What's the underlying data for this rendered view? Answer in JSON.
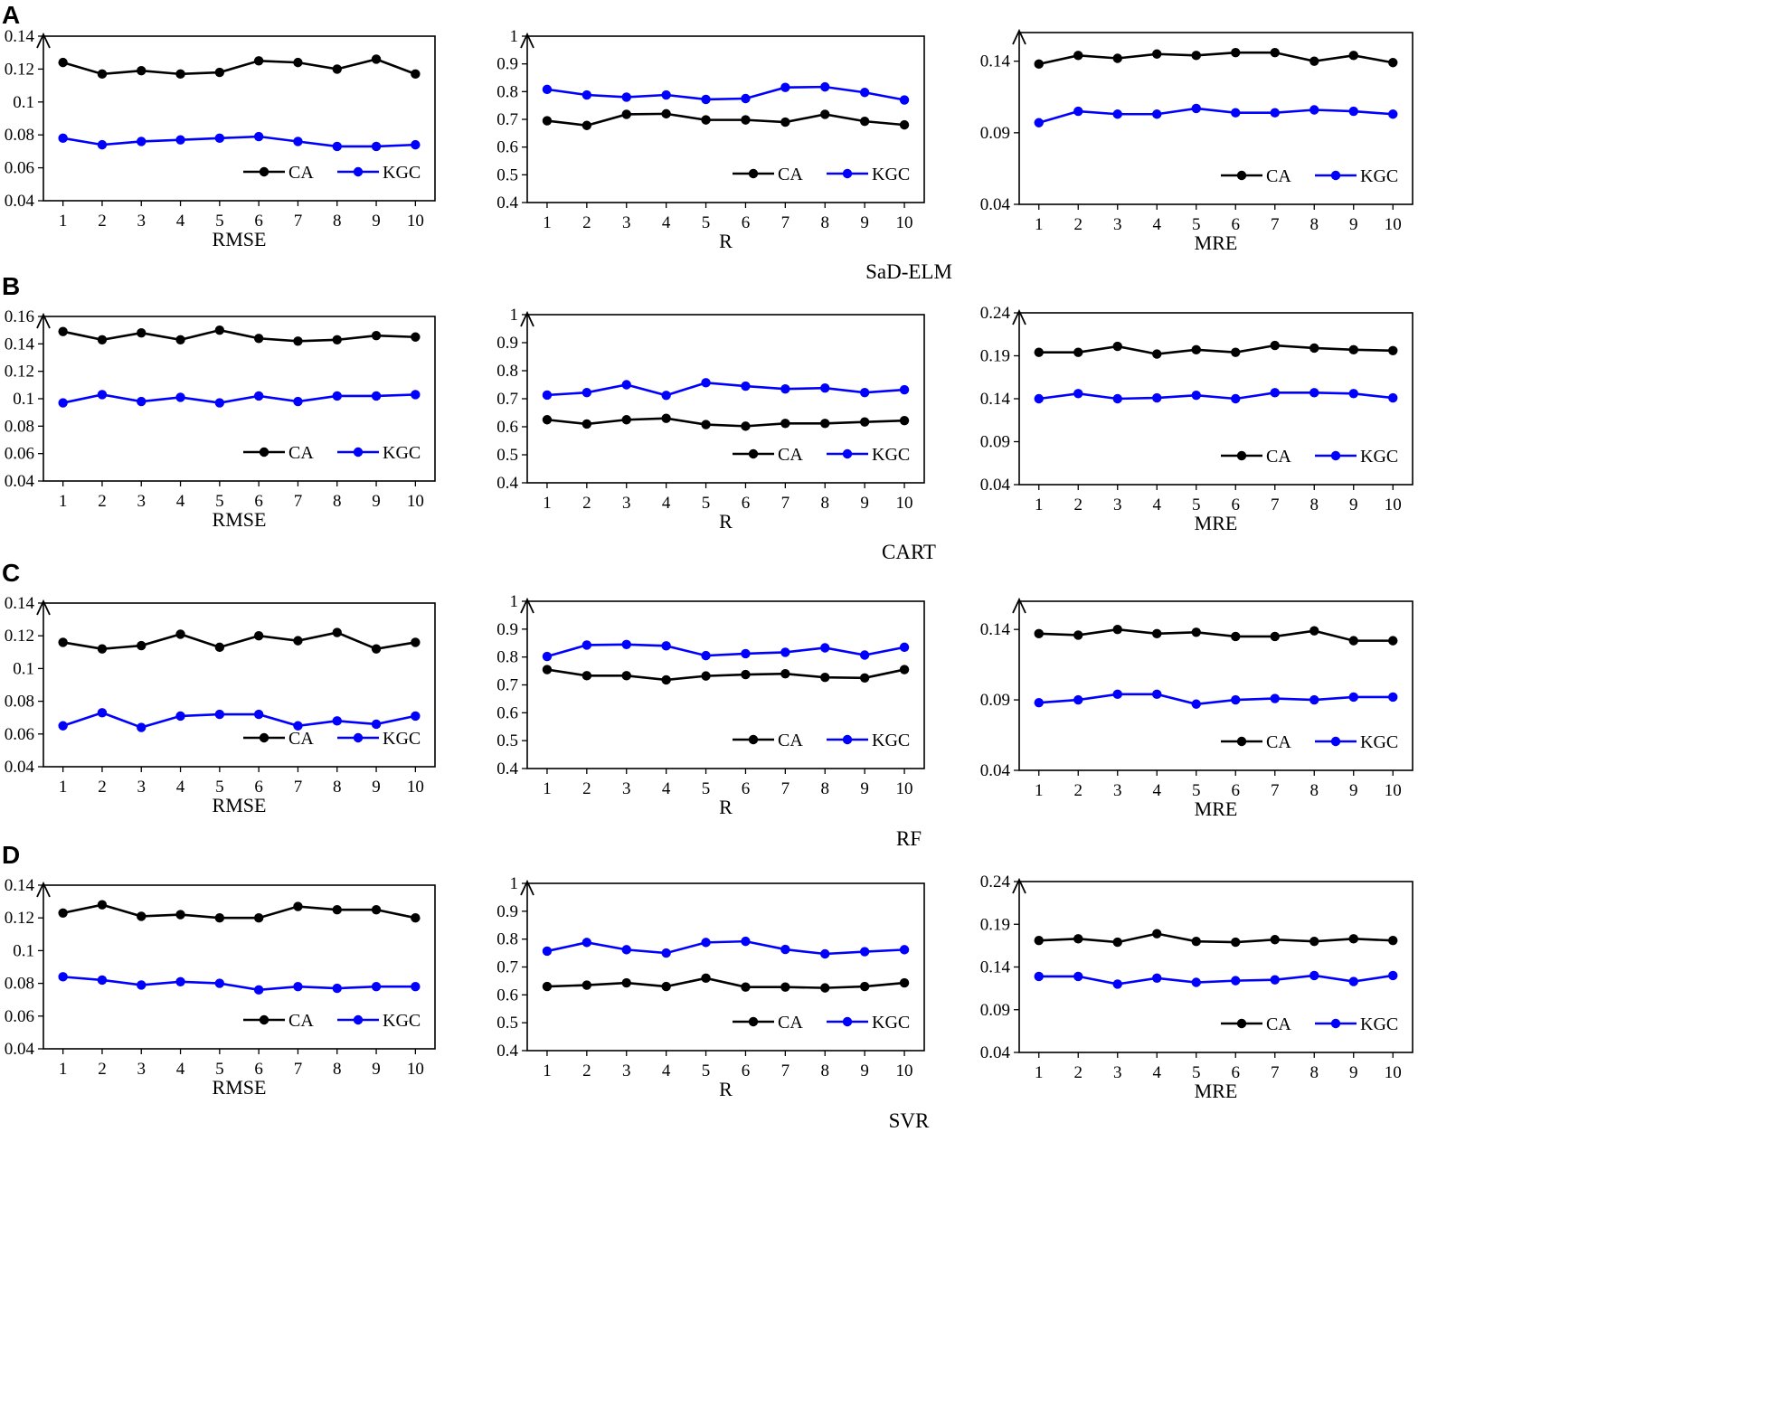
{
  "figure": {
    "rows": [
      {
        "label": "A",
        "caption": "SaD-ELM",
        "charts": [
          {
            "type": "line",
            "xlabel": "RMSE",
            "categories": [
              "1",
              "2",
              "3",
              "4",
              "5",
              "6",
              "7",
              "8",
              "9",
              "10"
            ],
            "ylim": [
              0.04,
              0.14
            ],
            "yticks": [
              "0.04",
              "0.06",
              "0.08",
              "0.1",
              "0.12",
              "0.14"
            ],
            "yticks_val": [
              0.04,
              0.06,
              0.08,
              0.1,
              0.12,
              0.14
            ],
            "legend": "bottom-right",
            "series": [
              {
                "name": "CA",
                "color": "#000000",
                "values": [
                  0.124,
                  0.117,
                  0.119,
                  0.117,
                  0.118,
                  0.125,
                  0.124,
                  0.12,
                  0.126,
                  0.117
                ]
              },
              {
                "name": "KGC",
                "color": "#0000ff",
                "values": [
                  0.078,
                  0.074,
                  0.076,
                  0.077,
                  0.078,
                  0.079,
                  0.076,
                  0.073,
                  0.073,
                  0.074
                ]
              }
            ]
          },
          {
            "type": "line",
            "xlabel": "R",
            "categories": [
              "1",
              "2",
              "3",
              "4",
              "5",
              "6",
              "7",
              "8",
              "9",
              "10"
            ],
            "ylim": [
              0.4,
              1
            ],
            "yticks": [
              "0.4",
              "0.5",
              "0.6",
              "0.7",
              "0.8",
              "0.9",
              "1"
            ],
            "yticks_val": [
              0.4,
              0.5,
              0.6,
              0.7,
              0.8,
              0.9,
              1
            ],
            "legend": "bottom-right",
            "series": [
              {
                "name": "CA",
                "color": "#000000",
                "values": [
                  0.695,
                  0.678,
                  0.718,
                  0.72,
                  0.698,
                  0.698,
                  0.69,
                  0.718,
                  0.693,
                  0.68
                ]
              },
              {
                "name": "KGC",
                "color": "#0000ff",
                "values": [
                  0.808,
                  0.788,
                  0.78,
                  0.788,
                  0.772,
                  0.775,
                  0.815,
                  0.817,
                  0.797,
                  0.77
                ]
              }
            ]
          },
          {
            "type": "line",
            "xlabel": "MRE",
            "categories": [
              "1",
              "2",
              "3",
              "4",
              "5",
              "6",
              "7",
              "8",
              "9",
              "10"
            ],
            "ylim": [
              0.04,
              0.16
            ],
            "yticks": [
              "0.04",
              "0.09",
              "0.14"
            ],
            "yticks_val": [
              0.04,
              0.09,
              0.14
            ],
            "legend": "bottom-right",
            "series": [
              {
                "name": "CA",
                "color": "#000000",
                "values": [
                  0.138,
                  0.144,
                  0.142,
                  0.145,
                  0.144,
                  0.146,
                  0.146,
                  0.14,
                  0.144,
                  0.139
                ]
              },
              {
                "name": "KGC",
                "color": "#0000ff",
                "values": [
                  0.097,
                  0.105,
                  0.103,
                  0.103,
                  0.107,
                  0.104,
                  0.104,
                  0.106,
                  0.105,
                  0.103
                ]
              }
            ]
          }
        ]
      },
      {
        "label": "B",
        "caption": "CART",
        "charts": [
          {
            "type": "line",
            "xlabel": "RMSE",
            "categories": [
              "1",
              "2",
              "3",
              "4",
              "5",
              "6",
              "7",
              "8",
              "9",
              "10"
            ],
            "ylim": [
              0.04,
              0.16
            ],
            "yticks": [
              "0.04",
              "0.06",
              "0.08",
              "0.1",
              "0.12",
              "0.14",
              "0.16"
            ],
            "yticks_val": [
              0.04,
              0.06,
              0.08,
              0.1,
              0.12,
              0.14,
              0.16
            ],
            "legend": "bottom-right",
            "series": [
              {
                "name": "CA",
                "color": "#000000",
                "values": [
                  0.149,
                  0.143,
                  0.148,
                  0.143,
                  0.15,
                  0.144,
                  0.142,
                  0.143,
                  0.146,
                  0.145
                ]
              },
              {
                "name": "KGC",
                "color": "#0000ff",
                "values": [
                  0.097,
                  0.103,
                  0.098,
                  0.101,
                  0.097,
                  0.102,
                  0.098,
                  0.102,
                  0.102,
                  0.103
                ]
              }
            ]
          },
          {
            "type": "line",
            "xlabel": "R",
            "categories": [
              "1",
              "2",
              "3",
              "4",
              "5",
              "6",
              "7",
              "8",
              "9",
              "10"
            ],
            "ylim": [
              0.4,
              1
            ],
            "yticks": [
              "0.4",
              "0.5",
              "0.6",
              "0.7",
              "0.8",
              "0.9",
              "1"
            ],
            "yticks_val": [
              0.4,
              0.5,
              0.6,
              0.7,
              0.8,
              0.9,
              1
            ],
            "legend": "bottom-right",
            "series": [
              {
                "name": "CA",
                "color": "#000000",
                "values": [
                  0.625,
                  0.61,
                  0.625,
                  0.63,
                  0.608,
                  0.602,
                  0.612,
                  0.612,
                  0.617,
                  0.622
                ]
              },
              {
                "name": "KGC",
                "color": "#0000ff",
                "values": [
                  0.713,
                  0.722,
                  0.75,
                  0.712,
                  0.757,
                  0.745,
                  0.735,
                  0.738,
                  0.722,
                  0.732
                ]
              }
            ]
          },
          {
            "type": "line",
            "xlabel": "MRE",
            "categories": [
              "1",
              "2",
              "3",
              "4",
              "5",
              "6",
              "7",
              "8",
              "9",
              "10"
            ],
            "ylim": [
              0.04,
              0.24
            ],
            "yticks": [
              "0.04",
              "0.09",
              "0.14",
              "0.19",
              "0.24"
            ],
            "yticks_val": [
              0.04,
              0.09,
              0.14,
              0.19,
              0.24
            ],
            "legend": "bottom-right",
            "series": [
              {
                "name": "CA",
                "color": "#000000",
                "values": [
                  0.194,
                  0.194,
                  0.201,
                  0.192,
                  0.197,
                  0.194,
                  0.202,
                  0.199,
                  0.197,
                  0.196
                ]
              },
              {
                "name": "KGC",
                "color": "#0000ff",
                "values": [
                  0.14,
                  0.146,
                  0.14,
                  0.141,
                  0.144,
                  0.14,
                  0.147,
                  0.147,
                  0.146,
                  0.141
                ]
              }
            ]
          }
        ]
      },
      {
        "label": "C",
        "caption": "RF",
        "charts": [
          {
            "type": "line",
            "xlabel": "RMSE",
            "categories": [
              "1",
              "2",
              "3",
              "4",
              "5",
              "6",
              "7",
              "8",
              "9",
              "10"
            ],
            "ylim": [
              0.04,
              0.14
            ],
            "yticks": [
              "0.04",
              "0.06",
              "0.08",
              "0.1",
              "0.12",
              "0.14"
            ],
            "yticks_val": [
              0.04,
              0.06,
              0.08,
              0.1,
              0.12,
              0.14
            ],
            "legend": "bottom-right",
            "series": [
              {
                "name": "CA",
                "color": "#000000",
                "values": [
                  0.116,
                  0.112,
                  0.114,
                  0.121,
                  0.113,
                  0.12,
                  0.117,
                  0.122,
                  0.112,
                  0.116
                ]
              },
              {
                "name": "KGC",
                "color": "#0000ff",
                "values": [
                  0.065,
                  0.073,
                  0.064,
                  0.071,
                  0.072,
                  0.072,
                  0.065,
                  0.068,
                  0.066,
                  0.071
                ]
              }
            ]
          },
          {
            "type": "line",
            "xlabel": "R",
            "categories": [
              "1",
              "2",
              "3",
              "4",
              "5",
              "6",
              "7",
              "8",
              "9",
              "10"
            ],
            "ylim": [
              0.4,
              1
            ],
            "yticks": [
              "0.4",
              "0.5",
              "0.6",
              "0.7",
              "0.8",
              "0.9",
              "1"
            ],
            "yticks_val": [
              0.4,
              0.5,
              0.6,
              0.7,
              0.8,
              0.9,
              1
            ],
            "legend": "bottom-right",
            "series": [
              {
                "name": "CA",
                "color": "#000000",
                "values": [
                  0.755,
                  0.733,
                  0.733,
                  0.718,
                  0.732,
                  0.737,
                  0.74,
                  0.727,
                  0.725,
                  0.755
                ]
              },
              {
                "name": "KGC",
                "color": "#0000ff",
                "values": [
                  0.802,
                  0.843,
                  0.845,
                  0.84,
                  0.805,
                  0.812,
                  0.817,
                  0.833,
                  0.807,
                  0.835
                ]
              }
            ]
          },
          {
            "type": "line",
            "xlabel": "MRE",
            "categories": [
              "1",
              "2",
              "3",
              "4",
              "5",
              "6",
              "7",
              "8",
              "9",
              "10"
            ],
            "ylim": [
              0.04,
              0.16
            ],
            "yticks": [
              "0.04",
              "0.09",
              "0.14"
            ],
            "yticks_val": [
              0.04,
              0.09,
              0.14
            ],
            "legend": "bottom-right",
            "series": [
              {
                "name": "CA",
                "color": "#000000",
                "values": [
                  0.137,
                  0.136,
                  0.14,
                  0.137,
                  0.138,
                  0.135,
                  0.135,
                  0.139,
                  0.132,
                  0.132
                ]
              },
              {
                "name": "KGC",
                "color": "#0000ff",
                "values": [
                  0.088,
                  0.09,
                  0.094,
                  0.094,
                  0.087,
                  0.09,
                  0.091,
                  0.09,
                  0.092,
                  0.092
                ]
              }
            ]
          }
        ]
      },
      {
        "label": "D",
        "caption": "SVR",
        "charts": [
          {
            "type": "line",
            "xlabel": "RMSE",
            "categories": [
              "1",
              "2",
              "3",
              "4",
              "5",
              "6",
              "7",
              "8",
              "9",
              "10"
            ],
            "ylim": [
              0.04,
              0.14
            ],
            "yticks": [
              "0.04",
              "0.06",
              "0.08",
              "0.1",
              "0.12",
              "0.14"
            ],
            "yticks_val": [
              0.04,
              0.06,
              0.08,
              0.1,
              0.12,
              0.14
            ],
            "legend": "bottom-right",
            "series": [
              {
                "name": "CA",
                "color": "#000000",
                "values": [
                  0.123,
                  0.128,
                  0.121,
                  0.122,
                  0.12,
                  0.12,
                  0.127,
                  0.125,
                  0.125,
                  0.12
                ]
              },
              {
                "name": "KGC",
                "color": "#0000ff",
                "values": [
                  0.084,
                  0.082,
                  0.079,
                  0.081,
                  0.08,
                  0.076,
                  0.078,
                  0.077,
                  0.078,
                  0.078
                ]
              }
            ]
          },
          {
            "type": "line",
            "xlabel": "R",
            "categories": [
              "1",
              "2",
              "3",
              "4",
              "5",
              "6",
              "7",
              "8",
              "9",
              "10"
            ],
            "ylim": [
              0.4,
              1
            ],
            "yticks": [
              "0.4",
              "0.5",
              "0.6",
              "0.7",
              "0.8",
              "0.9",
              "1"
            ],
            "yticks_val": [
              0.4,
              0.5,
              0.6,
              0.7,
              0.8,
              0.9,
              1
            ],
            "legend": "bottom-right",
            "series": [
              {
                "name": "CA",
                "color": "#000000",
                "values": [
                  0.63,
                  0.635,
                  0.643,
                  0.63,
                  0.66,
                  0.628,
                  0.628,
                  0.625,
                  0.63,
                  0.643
                ]
              },
              {
                "name": "KGC",
                "color": "#0000ff",
                "values": [
                  0.757,
                  0.788,
                  0.762,
                  0.75,
                  0.788,
                  0.792,
                  0.763,
                  0.747,
                  0.755,
                  0.762
                ]
              }
            ]
          },
          {
            "type": "line",
            "xlabel": "MRE",
            "categories": [
              "1",
              "2",
              "3",
              "4",
              "5",
              "6",
              "7",
              "8",
              "9",
              "10"
            ],
            "ylim": [
              0.04,
              0.24
            ],
            "yticks": [
              "0.04",
              "0.09",
              "0.14",
              "0.19",
              "0.24"
            ],
            "yticks_val": [
              0.04,
              0.09,
              0.14,
              0.19,
              0.24
            ],
            "legend": "bottom-right",
            "series": [
              {
                "name": "CA",
                "color": "#000000",
                "values": [
                  0.171,
                  0.173,
                  0.169,
                  0.179,
                  0.17,
                  0.169,
                  0.172,
                  0.17,
                  0.173,
                  0.171
                ]
              },
              {
                "name": "KGC",
                "color": "#0000ff",
                "values": [
                  0.129,
                  0.129,
                  0.12,
                  0.127,
                  0.122,
                  0.124,
                  0.125,
                  0.13,
                  0.123,
                  0.13
                ]
              }
            ]
          }
        ]
      }
    ]
  }
}
